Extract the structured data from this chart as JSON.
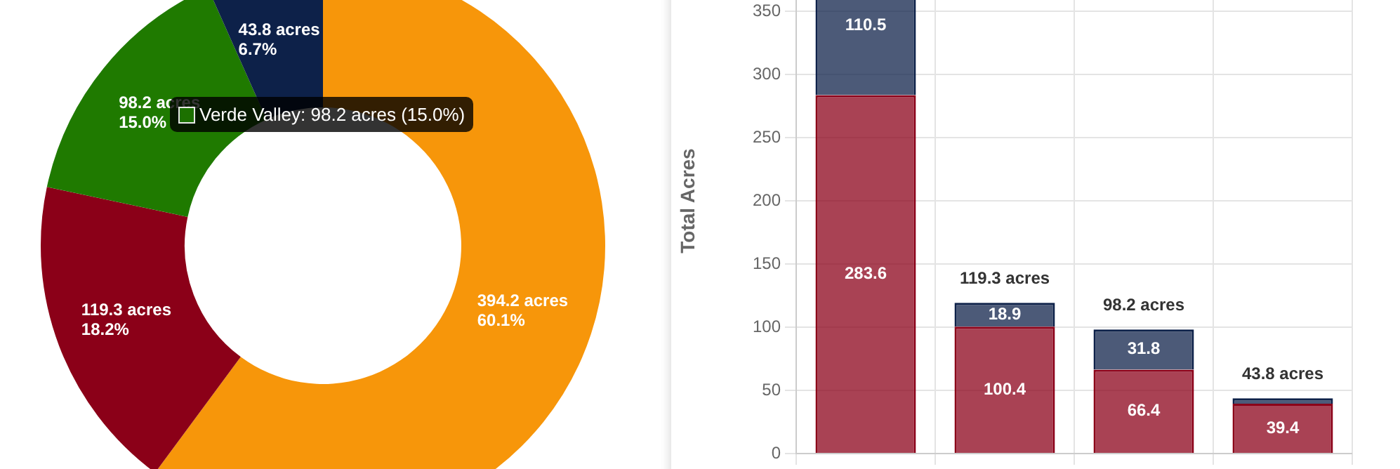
{
  "chart_data": [
    {
      "type": "donut",
      "categories": [
        null,
        null,
        null,
        null
      ],
      "values": [
        394.2,
        119.3,
        98.2,
        43.8
      ],
      "colors": [
        "#f7960a",
        "#8b0018",
        "#1f7a00",
        "#0d2149"
      ],
      "value_labels": [
        "394.2 acres\n60.1%",
        "119.3 acres\n18.2%",
        "98.2 acres\n15.0%",
        "43.8 acres\n6.7%"
      ],
      "annotations": [
        "Verde Valley: 98.2 acres (15.0%)"
      ]
    },
    {
      "type": "bar",
      "stacked": true,
      "categories": [
        null,
        null,
        null,
        null
      ],
      "ylabel": "Total Acres",
      "ylim": [
        0,
        400
      ],
      "yticks": [
        0,
        50,
        100,
        150,
        200,
        250,
        300,
        350
      ],
      "grid": true,
      "series": [
        {
          "color": "#8b0018",
          "values": [
            283.6,
            100.4,
            66.4,
            39.4
          ],
          "value_labels": [
            "283.6",
            "100.4",
            "66.4",
            "39.4"
          ]
        },
        {
          "color": "#0d2149",
          "values": [
            110.5,
            18.9,
            31.8,
            4.4
          ],
          "value_labels": [
            "110.5",
            "18.9",
            "31.8",
            null
          ]
        }
      ],
      "totals": [
        null,
        "119.3 acres",
        "98.2 acres",
        "43.8 acres"
      ]
    }
  ]
}
